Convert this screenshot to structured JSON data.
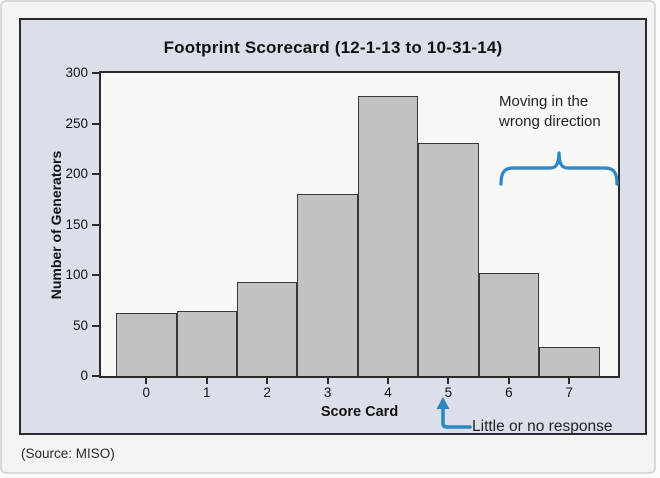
{
  "chart_data": {
    "type": "bar",
    "title": "Footprint Scorecard (12-1-13 to 10-31-14)",
    "categories": [
      "0",
      "1",
      "2",
      "3",
      "4",
      "5",
      "6",
      "7"
    ],
    "values": [
      62,
      64,
      93,
      180,
      277,
      231,
      102,
      29
    ],
    "xlabel": "Score Card",
    "ylabel": "Number of Generators",
    "ylim": [
      0,
      300
    ],
    "yticks": [
      0,
      50,
      100,
      150,
      200,
      250,
      300
    ],
    "grid": false,
    "legend": false,
    "bar_fill": "#c2c2c2",
    "bar_border": "#383838",
    "annotations": [
      {
        "type": "brace",
        "text": "Moving in the wrong direction",
        "covers_categories": [
          "6",
          "7"
        ],
        "color": "#2e86c6"
      },
      {
        "type": "arrow",
        "text": "Little or no response",
        "points_to_category": "5",
        "color": "#2e86c6"
      }
    ]
  },
  "annotations": {
    "wrong_direction": "Moving in the\nwrong direction",
    "little_response": "Little or no response"
  },
  "page": {
    "source_note": "(Source: MISO)"
  },
  "colors": {
    "accent_blue": "#2e86c6",
    "panel_bg": "#dadfe9",
    "plot_bg": "#f8f8f7",
    "page_bg": "#f4f4f4",
    "bar_fill": "#c2c2c2"
  }
}
